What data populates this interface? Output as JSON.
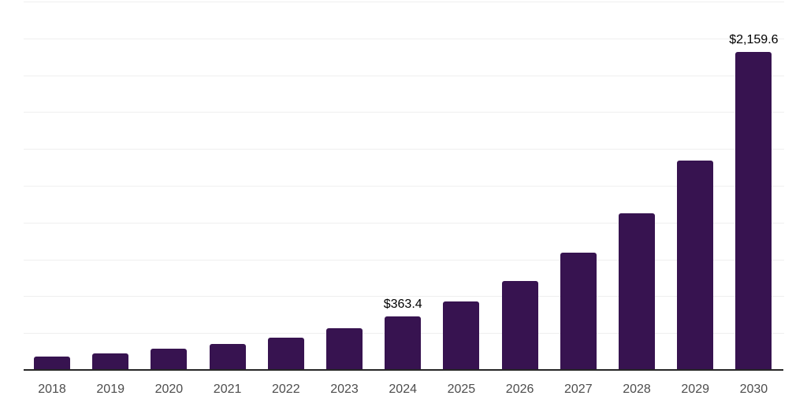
{
  "chart_data": {
    "type": "bar",
    "title": "",
    "xlabel": "",
    "ylabel": "",
    "categories": [
      "2018",
      "2019",
      "2020",
      "2021",
      "2022",
      "2023",
      "2024",
      "2025",
      "2026",
      "2027",
      "2028",
      "2029",
      "2030"
    ],
    "values": [
      91,
      112,
      144,
      176,
      219,
      283,
      363.4,
      465,
      604,
      796,
      1063,
      1421,
      2159.6
    ],
    "data_labels": {
      "2024": "$363.4",
      "2030": "$2,159.6"
    },
    "ylim": [
      0,
      2500
    ],
    "gridline_interval": 250,
    "grid": "horizontal-only",
    "legend": "none",
    "y_axis_labels_visible": false
  },
  "colors": {
    "bar": "#371350",
    "gridline": "#efefef",
    "axis": "#262626",
    "tick_label": "#4d4d4d",
    "value_label": "#000000",
    "background": "#ffffff"
  }
}
